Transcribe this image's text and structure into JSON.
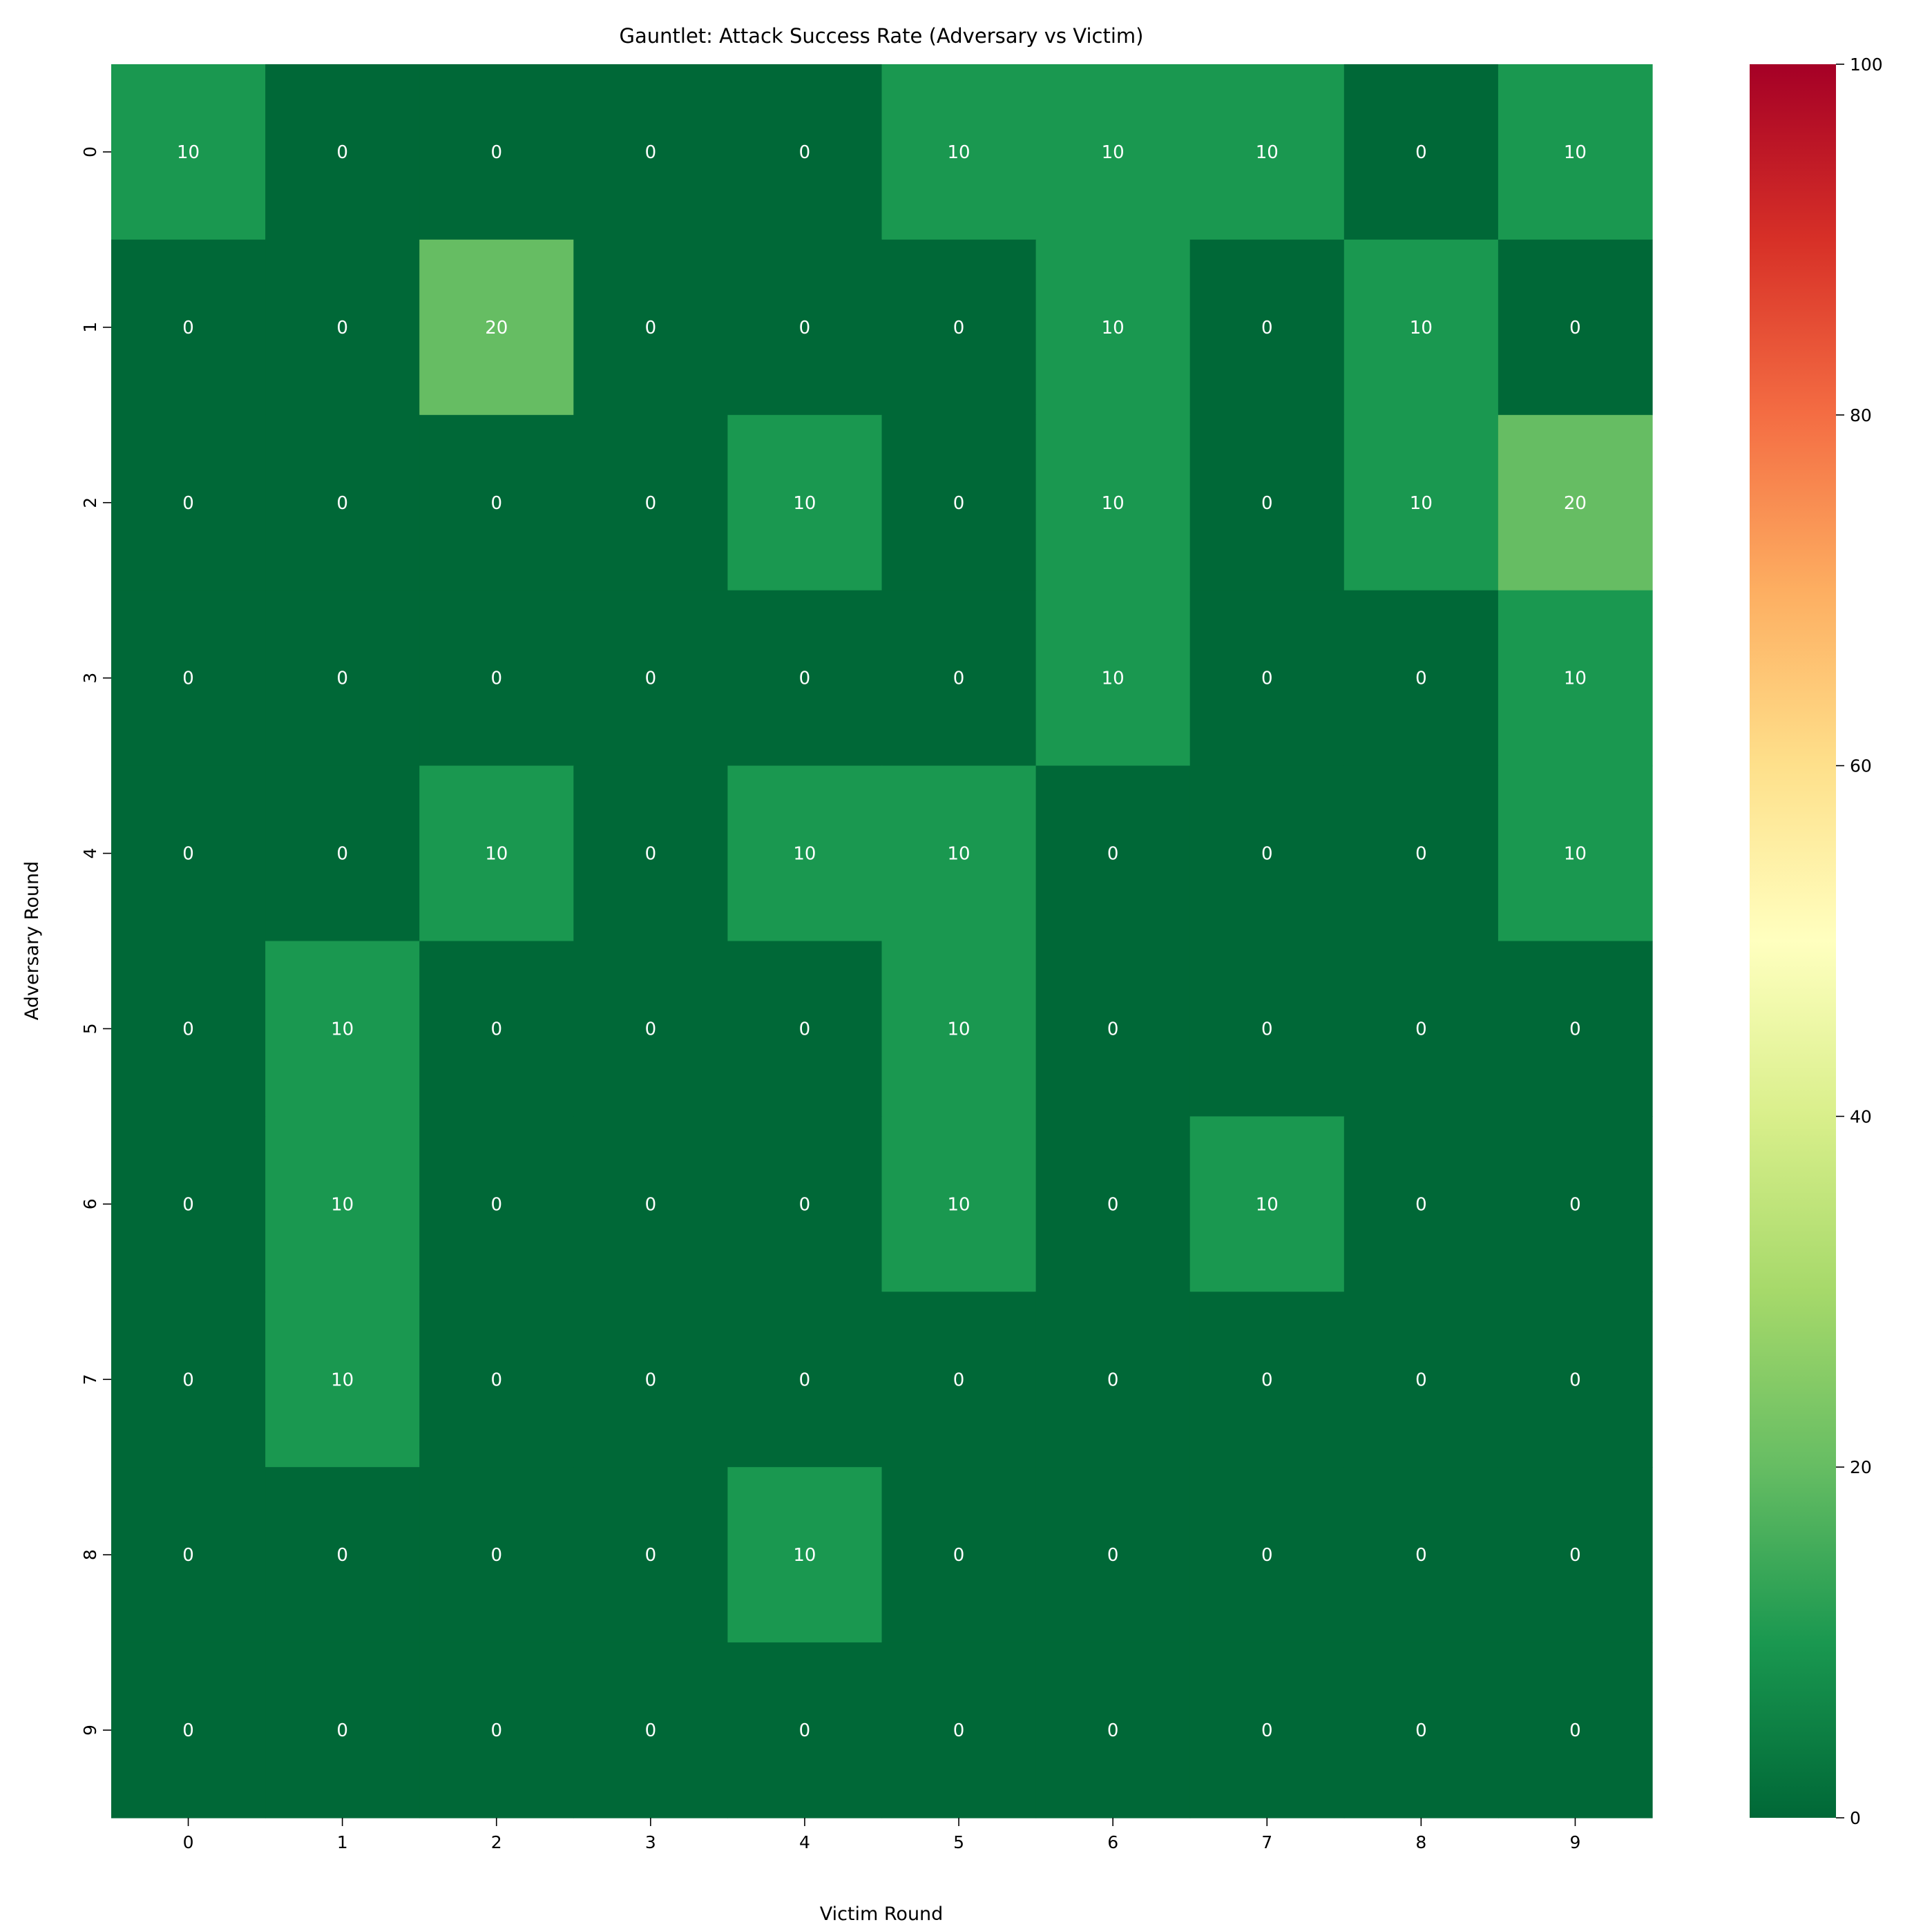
{
  "chart_data": {
    "type": "heatmap",
    "title": "Gauntlet: Attack Success Rate (Adversary vs Victim)",
    "xlabel": "Victim Round",
    "ylabel": "Adversary Round",
    "x_categories": [
      "0",
      "1",
      "2",
      "3",
      "4",
      "5",
      "6",
      "7",
      "8",
      "9"
    ],
    "y_categories": [
      "0",
      "1",
      "2",
      "3",
      "4",
      "5",
      "6",
      "7",
      "8",
      "9"
    ],
    "values": [
      [
        10,
        0,
        0,
        0,
        0,
        10,
        10,
        10,
        0,
        10
      ],
      [
        0,
        0,
        20,
        0,
        0,
        0,
        10,
        0,
        10,
        0
      ],
      [
        0,
        0,
        0,
        0,
        10,
        0,
        10,
        0,
        10,
        20
      ],
      [
        0,
        0,
        0,
        0,
        0,
        0,
        10,
        0,
        0,
        10
      ],
      [
        0,
        0,
        10,
        0,
        10,
        10,
        0,
        0,
        0,
        10
      ],
      [
        0,
        10,
        0,
        0,
        0,
        10,
        0,
        0,
        0,
        0
      ],
      [
        0,
        10,
        0,
        0,
        0,
        10,
        0,
        10,
        0,
        0
      ],
      [
        0,
        10,
        0,
        0,
        0,
        0,
        0,
        0,
        0,
        0
      ],
      [
        0,
        0,
        0,
        0,
        10,
        0,
        0,
        0,
        0,
        0
      ],
      [
        0,
        0,
        0,
        0,
        0,
        0,
        0,
        0,
        0,
        0
      ]
    ],
    "colormap": "RdYlGn_r",
    "colormap_stops": [
      "#006837",
      "#1a9850",
      "#66bd63",
      "#a6d96a",
      "#d9ef8b",
      "#ffffbf",
      "#fee08b",
      "#fdae61",
      "#f46d43",
      "#d73027",
      "#a50026"
    ],
    "vmin": 0,
    "vmax": 100,
    "colorbar_ticks": [
      "0",
      "20",
      "40",
      "60",
      "80",
      "100"
    ],
    "annotation_color": "#ffffff",
    "grid": false
  }
}
